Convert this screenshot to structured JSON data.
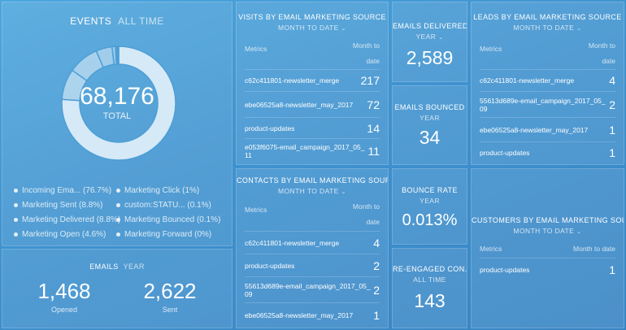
{
  "events": {
    "title": "EVENTS",
    "period": "ALL TIME",
    "total_value": "68,176",
    "total_label": "TOTAL",
    "legend": [
      {
        "label": "Incoming Ema... (76.7%)",
        "pct": 76.7
      },
      {
        "label": "Marketing Sent (8.8%)",
        "pct": 8.8
      },
      {
        "label": "Marketing Delivered (8.8%)",
        "pct": 8.8
      },
      {
        "label": "Marketing Open (4.6%)",
        "pct": 4.6
      },
      {
        "label": "Marketing Click (1%)",
        "pct": 1.0
      },
      {
        "label": "custom:STATU... (0.1%)",
        "pct": 0.1
      },
      {
        "label": "Marketing Bounced (0.1%)",
        "pct": 0.1
      },
      {
        "label": "Marketing Forward (0%)",
        "pct": 0.0
      }
    ]
  },
  "emails": {
    "title": "EMAILS",
    "period": "YEAR",
    "opened_value": "1,468",
    "opened_label": "Opened",
    "sent_value": "2,622",
    "sent_label": "Sent"
  },
  "visits": {
    "title": "VISITS BY EMAIL MARKETING SOURCE",
    "period": "MONTH TO DATE",
    "col_metrics": "Metrics",
    "col_value": "Month to date",
    "rows": [
      {
        "key": "c62c411801-newsletter_merge",
        "value": "217"
      },
      {
        "key": "ebe06525a8-newsletter_may_2017",
        "value": "72"
      },
      {
        "key": "product-updates",
        "value": "14"
      },
      {
        "key": "e053f6075-email_campaign_2017_05_11",
        "value": "11"
      }
    ]
  },
  "contacts": {
    "title": "CONTACTS BY EMAIL MARKETING SOURCE",
    "period": "MONTH TO DATE",
    "col_metrics": "Metrics",
    "col_value": "Month to date",
    "rows": [
      {
        "key": "c62c411801-newsletter_merge",
        "value": "4"
      },
      {
        "key": "product-updates",
        "value": "2"
      },
      {
        "key": "55613d689e-email_campaign_2017_05_09",
        "value": "2"
      },
      {
        "key": "ebe06525a8-newsletter_may_2017",
        "value": "1"
      }
    ]
  },
  "delivered": {
    "title": "EMAILS DELIVERED",
    "period": "YEAR",
    "value": "2,589"
  },
  "bounced": {
    "title": "EMAILS BOUNCED",
    "period": "YEAR",
    "value": "34"
  },
  "bounce_rate": {
    "title": "BOUNCE RATE",
    "period": "YEAR",
    "value": "0.013%"
  },
  "reengaged": {
    "title": "RE-ENGAGED CON...",
    "period": "ALL TIME",
    "value": "143"
  },
  "leads": {
    "title": "LEADS BY EMAIL MARKETING SOURCE",
    "period": "MONTH TO DATE",
    "col_metrics": "Metrics",
    "col_value": "Month to date",
    "rows": [
      {
        "key": "c62c411801-newsletter_merge",
        "value": "4"
      },
      {
        "key": "55613d689e-email_campaign_2017_05_09",
        "value": "2"
      },
      {
        "key": "ebe06525a8-newsletter_may_2017",
        "value": "1"
      },
      {
        "key": "product-updates",
        "value": "1"
      }
    ]
  },
  "customers": {
    "title": "CUSTOMERS BY EMAIL MARKETING SOUR...",
    "period": "MONTH TO DATE",
    "col_metrics": "Metrics",
    "col_value": "Month to date",
    "rows": [
      {
        "key": "product-updates",
        "value": "1"
      }
    ]
  },
  "colors": {
    "ring_main": "#d6e9f7",
    "ring_gap": "#4d9fd6"
  }
}
